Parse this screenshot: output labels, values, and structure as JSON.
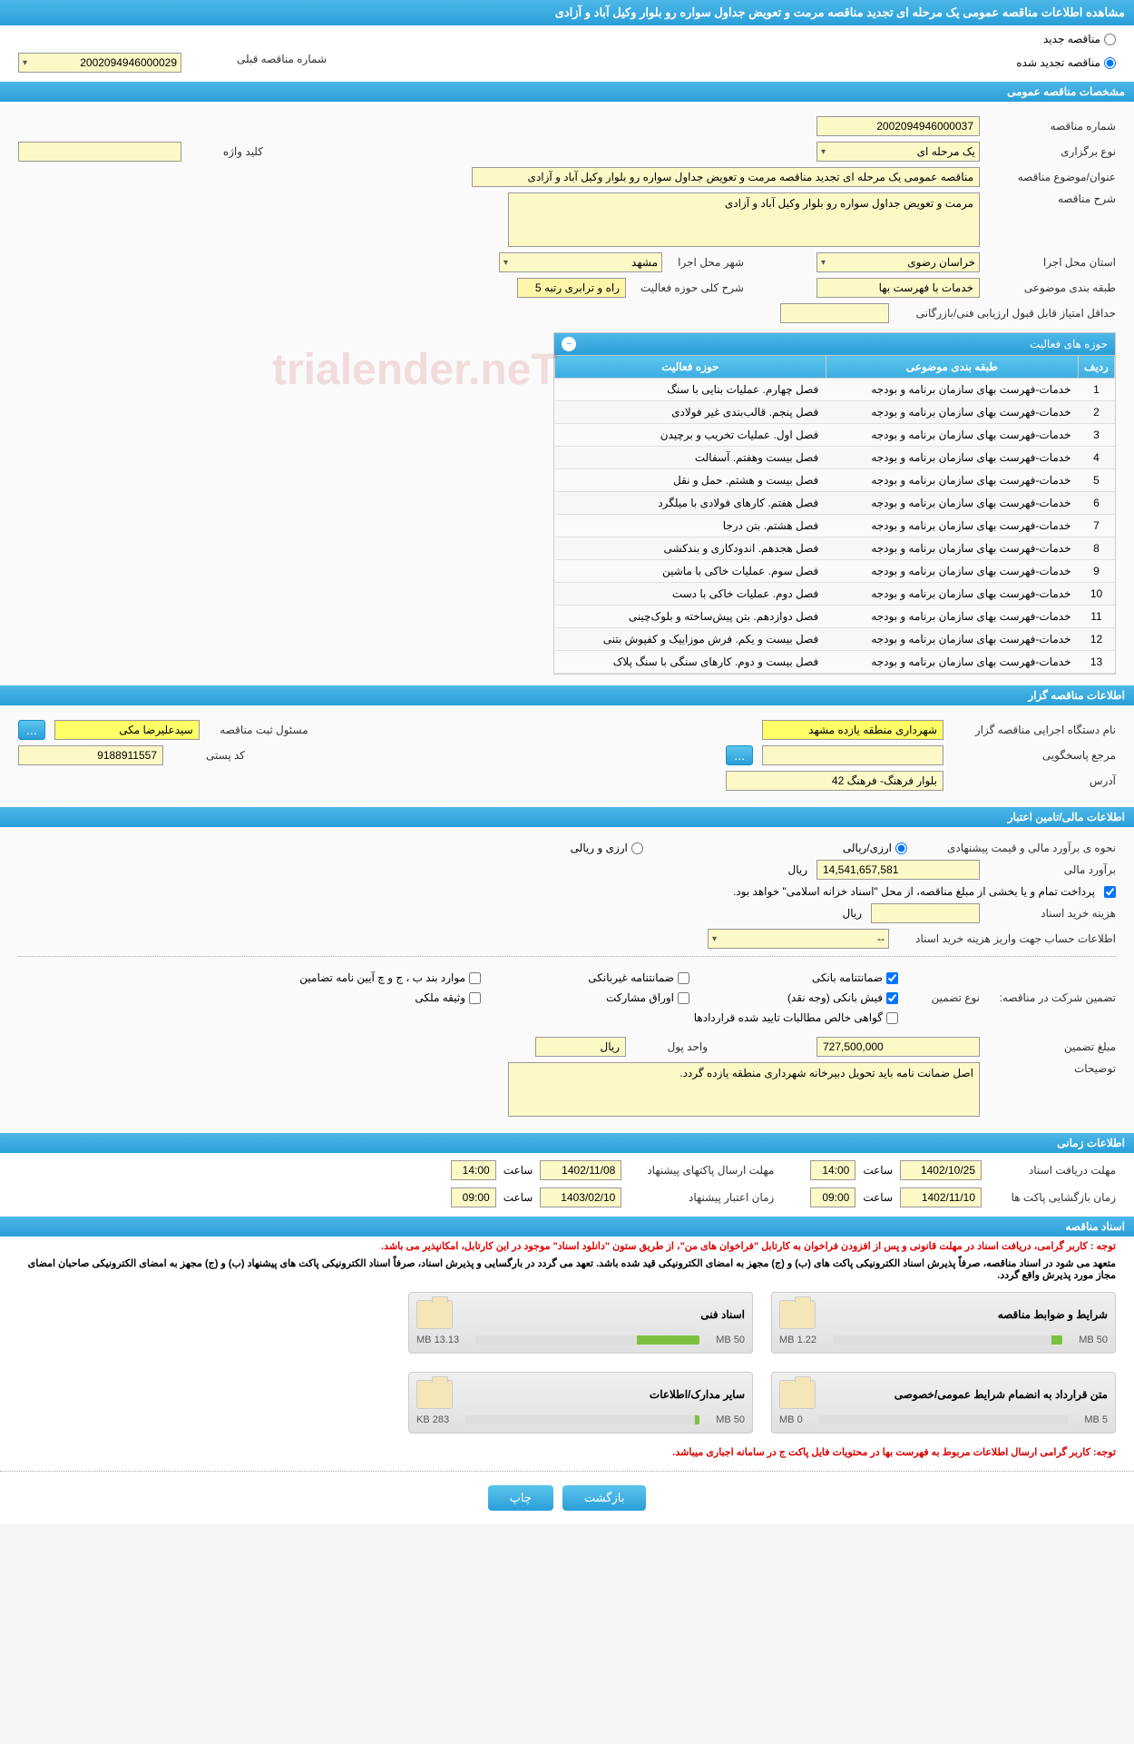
{
  "header": {
    "title": "مشاهده اطلاعات مناقصه عمومی یک مرحله ای تجدید مناقصه مرمت و تعویض جداول سواره رو بلوار وکیل آباد و آزادی"
  },
  "radios": {
    "new_label": "مناقصه جدید",
    "renewed_label": "مناقصه تجدید شده",
    "prev_num_label": "شماره مناقصه قبلی",
    "prev_num_value": "2002094946000029"
  },
  "sections": {
    "general": "مشخصات مناقصه عمومی",
    "organizer": "اطلاعات مناقصه گزار",
    "financial": "اطلاعات مالی/تامین اعتبار",
    "timing": "اطلاعات زمانی",
    "documents": "اسناد مناقصه"
  },
  "general": {
    "tender_num_label": "شماره مناقصه",
    "tender_num": "2002094946000037",
    "type_label": "نوع برگزاری",
    "type_value": "یک مرحله ای",
    "keyword_label": "کلید واژه",
    "keyword_value": "",
    "title_label": "عنوان/موضوع مناقصه",
    "title_value": "مناقصه عمومی یک مرحله ای تجدید مناقصه مرمت و تعویض جداول سواره رو بلوار وکیل آباد و آزادی",
    "desc_label": "شرح مناقصه",
    "desc_value": "مرمت و تعویض جداول سواره رو بلوار وکیل آباد و آزادی",
    "province_label": "استان محل اجرا",
    "province_value": "خراسان رضوی",
    "city_label": "شهر محل اجرا",
    "city_value": "مشهد",
    "cat_label": "طبقه بندی موضوعی",
    "cat_value": "خدمات با فهرست بها",
    "activity_desc_label": "شرح کلی حوزه فعالیت",
    "activity_desc_value": "راه و ترابری رتبه 5",
    "min_score_label": "حداقل امتیاز قابل قبول ارزیابی فنی/بازرگانی",
    "min_score_value": ""
  },
  "activities": {
    "panel_title": "حوزه های فعالیت",
    "col_row": "ردیف",
    "col_cat": "طبقه بندی موضوعی",
    "col_activity": "حوزه فعالیت",
    "rows": [
      {
        "n": "1",
        "cat": "خدمات-فهرست بهای سازمان برنامه و بودجه",
        "act": "فصل چهارم. عملیات بنایی با سنگ"
      },
      {
        "n": "2",
        "cat": "خدمات-فهرست بهای سازمان برنامه و بودجه",
        "act": "فصل پنجم. قالب‌بندی غیر فولادی"
      },
      {
        "n": "3",
        "cat": "خدمات-فهرست بهای سازمان برنامه و بودجه",
        "act": "فصل اول. عملیات تخریب و برچیدن"
      },
      {
        "n": "4",
        "cat": "خدمات-فهرست بهای سازمان برنامه و بودجه",
        "act": "فصل بیست وهفتم. آسفالت"
      },
      {
        "n": "5",
        "cat": "خدمات-فهرست بهای سازمان برنامه و بودجه",
        "act": "فصل بیست و هشتم. حمل و نقل"
      },
      {
        "n": "6",
        "cat": "خدمات-فهرست بهای سازمان برنامه و بودجه",
        "act": "فصل هفتم. کارهای فولادی با میلگرد"
      },
      {
        "n": "7",
        "cat": "خدمات-فهرست بهای سازمان برنامه و بودجه",
        "act": "فصل هشتم. بتن درجا"
      },
      {
        "n": "8",
        "cat": "خدمات-فهرست بهای سازمان برنامه و بودجه",
        "act": "فصل هجدهم. اندودکاری و بندکشی"
      },
      {
        "n": "9",
        "cat": "خدمات-فهرست بهای سازمان برنامه و بودجه",
        "act": "فصل سوم. عملیات خاکی با ماشین"
      },
      {
        "n": "10",
        "cat": "خدمات-فهرست بهای سازمان برنامه و بودجه",
        "act": "فصل دوم. عملیات خاکی با دست"
      },
      {
        "n": "11",
        "cat": "خدمات-فهرست بهای سازمان برنامه و بودجه",
        "act": "فصل دوازدهم. بتن پیش‌ساخته و بلوک‌چینی"
      },
      {
        "n": "12",
        "cat": "خدمات-فهرست بهای سازمان برنامه و بودجه",
        "act": "فصل بیست و یکم. فرش موزاییک و کفپوش بتنی"
      },
      {
        "n": "13",
        "cat": "خدمات-فهرست بهای سازمان برنامه و بودجه",
        "act": "فصل بیست و دوم. کارهای سنگی با سنگ پلاک"
      }
    ]
  },
  "organizer": {
    "exec_label": "نام دستگاه اجرایی مناقصه گزار",
    "exec_value": "شهرداری منطقه یازده مشهد",
    "reg_label": "مسئول ثبت مناقصه",
    "reg_value": "سیدعلیرضا مکی",
    "resp_label": "مرجع پاسخگویی",
    "resp_value": "",
    "postal_label": "کد پستی",
    "postal_value": "9188911557",
    "address_label": "آدرس",
    "address_value": "بلوار فرهنگ- فرهنگ 42"
  },
  "financial": {
    "method_label": "نحوه ی برآورد مالی و قیمت پیشنهادی",
    "method_opt1": "ارزی/ریالی",
    "method_opt2": "ارزی و ریالی",
    "estimate_label": "برآورد مالی",
    "estimate_value": "14,541,657,581",
    "currency": "ریال",
    "note": "پرداخت تمام و یا بخشی از مبلغ مناقصه، از محل \"اسناد خزانه اسلامی\" خواهد بود.",
    "doc_cost_label": "هزینه خرید اسناد",
    "doc_cost_value": "",
    "account_label": "اطلاعات حساب جهت واریز هزینه خرید اسناد",
    "account_value": "--",
    "guarantee_section_label": "تضمین شرکت در مناقصه:",
    "guarantee_type_label": "نوع تضمین",
    "g1": "ضمانتنامه بانکی",
    "g2": "ضمانتنامه غیربانکی",
    "g3": "موارد بند ب ، ج و چ آیین نامه تضامین",
    "g4": "فیش بانکی (وجه نقد)",
    "g5": "اوراق مشارکت",
    "g6": "وثیقه ملکی",
    "g7": "گواهی خالص مطالبات تایید شده قراردادها",
    "g_amount_label": "مبلغ تضمین",
    "g_amount_value": "727,500,000",
    "unit_label": "واحد پول",
    "unit_value": "ریال",
    "g_desc_label": "توضیحات",
    "g_desc_value": "اصل ضمانت نامه باید تحویل دبیرخانه شهرداری منطقه یازده گردد."
  },
  "timing": {
    "receive_label": "مهلت دریافت اسناد",
    "receive_date": "1402/10/25",
    "receive_time_label": "ساعت",
    "receive_time": "14:00",
    "send_label": "مهلت ارسال پاکتهای پیشنهاد",
    "send_date": "1402/11/08",
    "send_time": "14:00",
    "open_label": "زمان بازگشایی پاکت ها",
    "open_date": "1402/11/10",
    "open_time": "09:00",
    "valid_label": "زمان اعتبار پیشنهاد",
    "valid_date": "1403/02/10",
    "valid_time": "09:00"
  },
  "notices": {
    "n1": "توجه : کاربر گرامی، دریافت اسناد در مهلت قانونی و پس از افزودن فراخوان به کارتابل \"فراخوان های من\"، از طریق ستون \"دانلود اسناد\" موجود در این کارتابل، امکانپذیر می باشد.",
    "n2": "متعهد می شود در اسناد مناقصه، صرفاً پذیرش اسناد الکترونیکی پاکت های (ب) و (ج) مجهز به امضای الکترونیکی قید شده باشد. تعهد می گردد در بارگسایی و پذیرش اسناد، صرفاً اسناد الکترونیکی پاکت های پیشنهاد (ب) و (ج) مجهز به امضای الکترونیکی صاحبان امضای مجاز مورد پذیرش واقع گردد.",
    "n3": "توجه: کاربر گرامی ارسال اطلاعات مربوط به فهرست بها در محتویات فایل پاکت ج در سامانه اجباری میباشد."
  },
  "files": [
    {
      "title": "شرایط و ضوابط مناقصه",
      "size": "1.22 MB",
      "max": "50 MB",
      "pct": 5
    },
    {
      "title": "اسناد فنی",
      "size": "13.13 MB",
      "max": "50 MB",
      "pct": 28
    },
    {
      "title": "متن قرارداد به انضمام شرایط عمومی/خصوصی",
      "size": "0 MB",
      "max": "5 MB",
      "pct": 0
    },
    {
      "title": "سایر مدارک/اطلاعات",
      "size": "283 KB",
      "max": "50 MB",
      "pct": 2
    }
  ],
  "buttons": {
    "back": "بازگشت",
    "print": "چاپ",
    "more": "..."
  },
  "watermark": "trialender.neT"
}
